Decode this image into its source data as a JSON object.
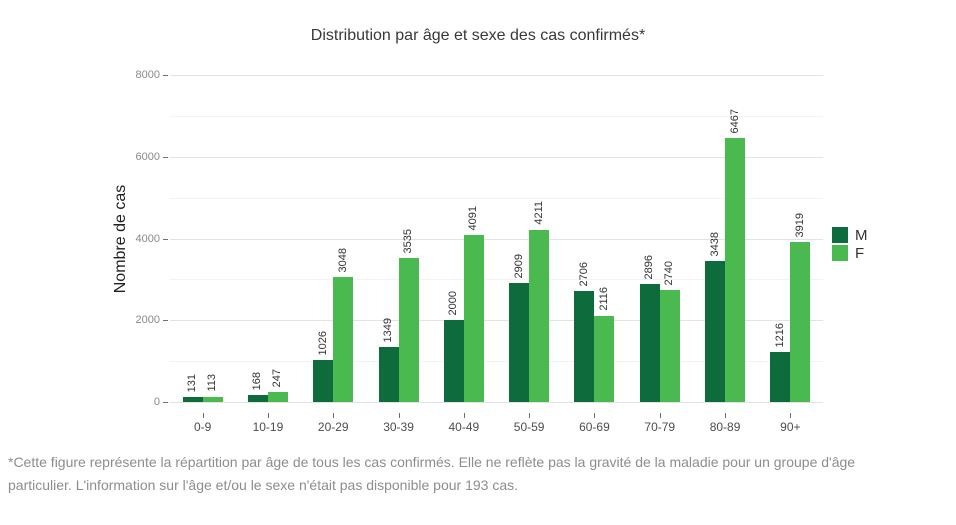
{
  "page": {
    "footnote": "*Cette figure représente la répartition par âge de tous les cas confirmés. Elle ne reflète pas la gravité de la maladie pour un groupe d'âge particulier. L'information sur l'âge et/ou le sexe n'était pas disponible pour 193 cas."
  },
  "chart_data": {
    "type": "bar",
    "title": "Distribution par âge et sexe des cas confirmés*",
    "xlabel": "",
    "ylabel": "Nombre de cas",
    "categories": [
      "0-9",
      "10-19",
      "20-29",
      "30-39",
      "40-49",
      "50-59",
      "60-69",
      "70-79",
      "80-89",
      "90+"
    ],
    "series": [
      {
        "name": "M",
        "color": "#0e6b3c",
        "values": [
          131,
          168,
          1026,
          1349,
          2000,
          2909,
          2706,
          2896,
          3438,
          1216
        ]
      },
      {
        "name": "F",
        "color": "#4ab94f",
        "values": [
          113,
          247,
          3048,
          3535,
          4091,
          4211,
          2116,
          2740,
          6467,
          3919
        ]
      }
    ],
    "ylim": [
      0,
      8000
    ],
    "yticks": [
      0,
      2000,
      4000,
      6000,
      8000
    ],
    "yticks_minor": [
      1000,
      3000,
      5000,
      7000
    ],
    "grid": true,
    "bar_value_labels": true,
    "legend_position": "right",
    "grid_color": "#e3e3e3",
    "minor_grid_color": "#f3f3f3",
    "value_label_color": "#333333",
    "y_axis_text_color": "#8a8a8a",
    "x_axis_text_color": "#4d4d4d",
    "footnote_color": "#8d8d8d"
  }
}
